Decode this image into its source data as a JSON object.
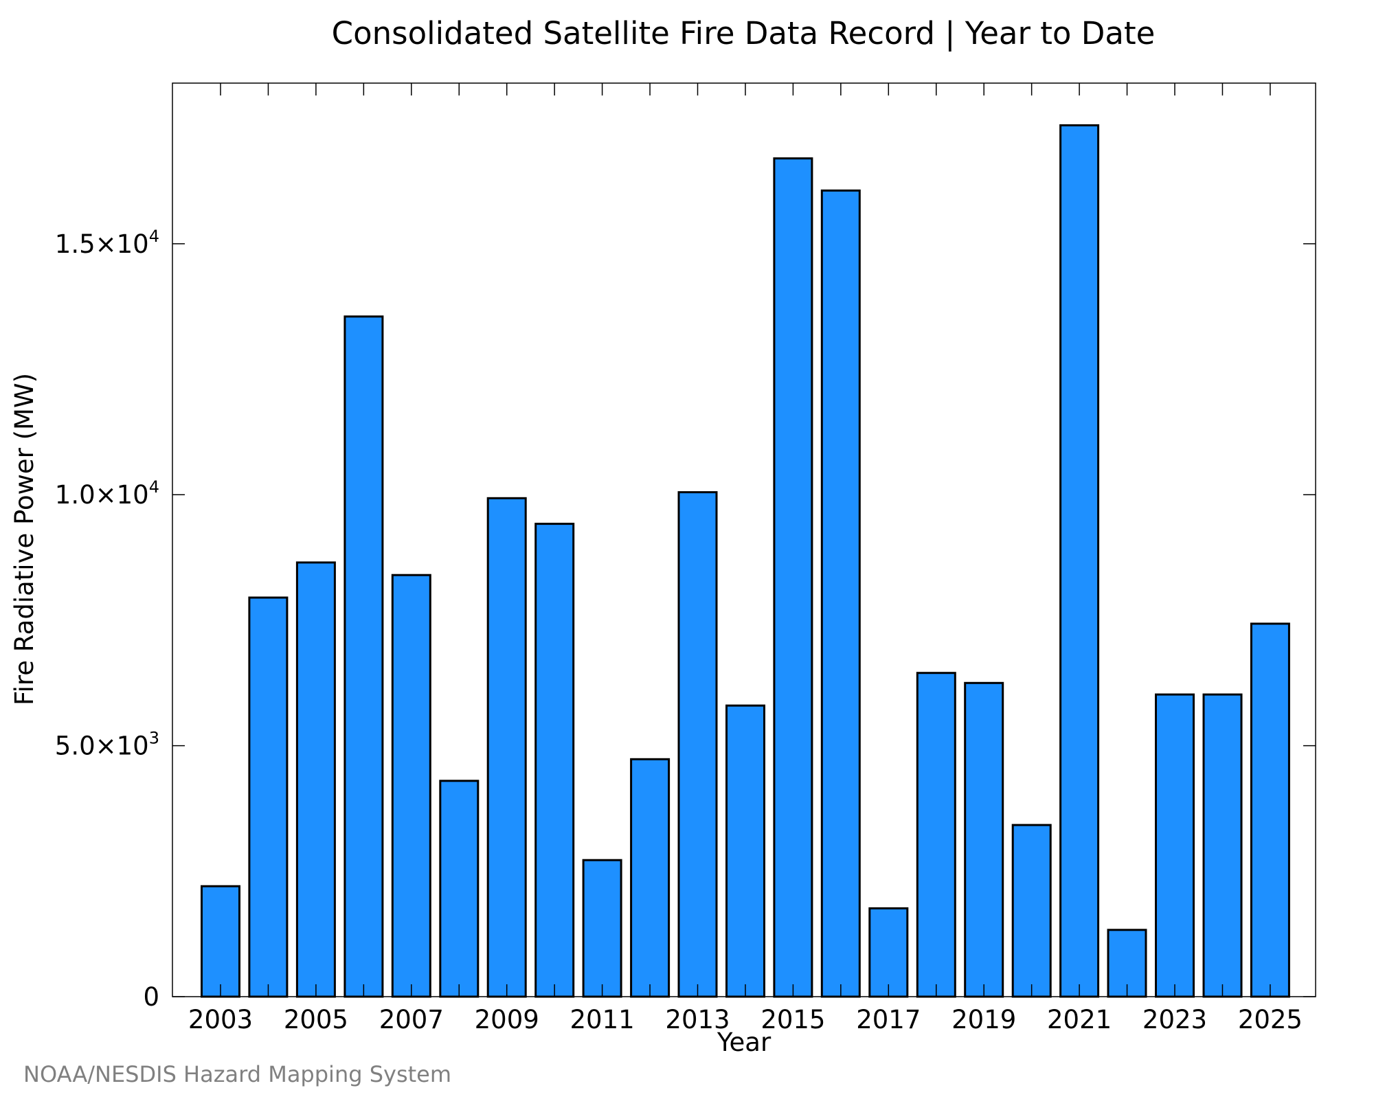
{
  "chart_data": {
    "type": "bar",
    "title": "Consolidated Satellite Fire Data Record | Year to Date",
    "xlabel": "Year",
    "ylabel": "Fire Radiative Power (MW)",
    "categories": [
      "2003",
      "2004",
      "2005",
      "2006",
      "2007",
      "2008",
      "2009",
      "2010",
      "2011",
      "2012",
      "2013",
      "2014",
      "2015",
      "2016",
      "2017",
      "2018",
      "2019",
      "2020",
      "2021",
      "2022",
      "2023",
      "2024",
      "2025"
    ],
    "values": [
      2200,
      7950,
      8650,
      13550,
      8400,
      4300,
      9930,
      9420,
      2720,
      4730,
      10050,
      5800,
      16700,
      16060,
      1760,
      6450,
      6250,
      3420,
      17360,
      1330,
      6020,
      6020,
      7430
    ],
    "x_tick_labels": [
      "2003",
      "2005",
      "2007",
      "2009",
      "2011",
      "2013",
      "2015",
      "2017",
      "2019",
      "2021",
      "2023",
      "2025"
    ],
    "y_ticks": [
      {
        "value": 0,
        "mantissa": "0",
        "exponent": ""
      },
      {
        "value": 5000,
        "mantissa": "5.0×10",
        "exponent": "3"
      },
      {
        "value": 10000,
        "mantissa": "1.0×10",
        "exponent": "4"
      },
      {
        "value": 15000,
        "mantissa": "1.5×10",
        "exponent": "4"
      }
    ],
    "ylim": [
      0,
      18200
    ],
    "bar_color": "#1e90ff",
    "bar_edge_color": "#000000",
    "grid": false,
    "legend": "none"
  },
  "credit": "NOAA/NESDIS Hazard Mapping System",
  "credit_color": "#808080"
}
